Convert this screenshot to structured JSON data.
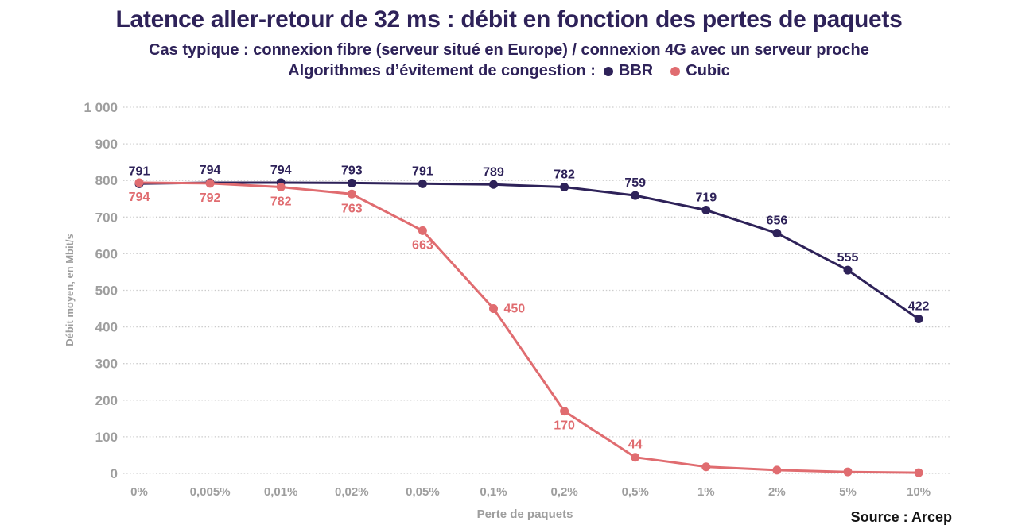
{
  "header": {
    "title": "Latence aller-retour de 32 ms : débit en fonction des pertes de paquets",
    "subtitle": "Cas typique : connexion fibre (serveur situé en Europe) / connexion 4G avec un serveur proche",
    "legend_label": "Algorithmes d’évitement de congestion :"
  },
  "axes": {
    "y_label": "Débit moyen, en Mbit/s",
    "x_label": "Perte de paquets"
  },
  "source_text": "Source : Arcep",
  "colors": {
    "bbr": "#2e2259",
    "cubic": "#e06c70",
    "grid": "#cccccc",
    "tick_text": "#9e9e9e"
  },
  "chart_data": {
    "type": "line",
    "title": "Latence aller-retour de 32 ms : débit en fonction des pertes de paquets",
    "xlabel": "Perte de paquets",
    "ylabel": "Débit moyen, en Mbit/s",
    "ylim": [
      0,
      1000
    ],
    "grid": "horizontal-dotted",
    "legend_position": "top-inline-subtitle",
    "categories": [
      "0%",
      "0,005%",
      "0,01%",
      "0,02%",
      "0,05%",
      "0,1%",
      "0,2%",
      "0,5%",
      "1%",
      "2%",
      "5%",
      "10%"
    ],
    "y_tick_values": [
      0,
      100,
      200,
      300,
      400,
      500,
      600,
      700,
      800,
      900,
      1000
    ],
    "y_tick_labels": [
      "0",
      "100",
      "200",
      "300",
      "400",
      "500",
      "600",
      "700",
      "800",
      "900",
      "1 000"
    ],
    "series": [
      {
        "name": "BBR",
        "color": "#2e2259",
        "values": [
          791,
          794,
          794,
          793,
          791,
          789,
          782,
          759,
          719,
          656,
          555,
          422
        ],
        "labels": [
          "791",
          "794",
          "794",
          "793",
          "791",
          "789",
          "782",
          "759",
          "719",
          "656",
          "555",
          "422"
        ],
        "label_pos": [
          "above",
          "above",
          "above",
          "above",
          "above",
          "above",
          "above",
          "above",
          "above",
          "above",
          "above",
          "above"
        ]
      },
      {
        "name": "Cubic",
        "color": "#e06c70",
        "values": [
          794,
          792,
          782,
          763,
          663,
          450,
          170,
          44,
          18,
          9,
          4,
          2
        ],
        "labels": [
          "794",
          "792",
          "782",
          "763",
          "663",
          "450",
          "170",
          "44",
          "",
          "",
          "",
          ""
        ],
        "label_pos": [
          "below",
          "below",
          "below",
          "below",
          "below",
          "right",
          "below",
          "above",
          "none",
          "none",
          "none",
          "none"
        ]
      }
    ]
  }
}
